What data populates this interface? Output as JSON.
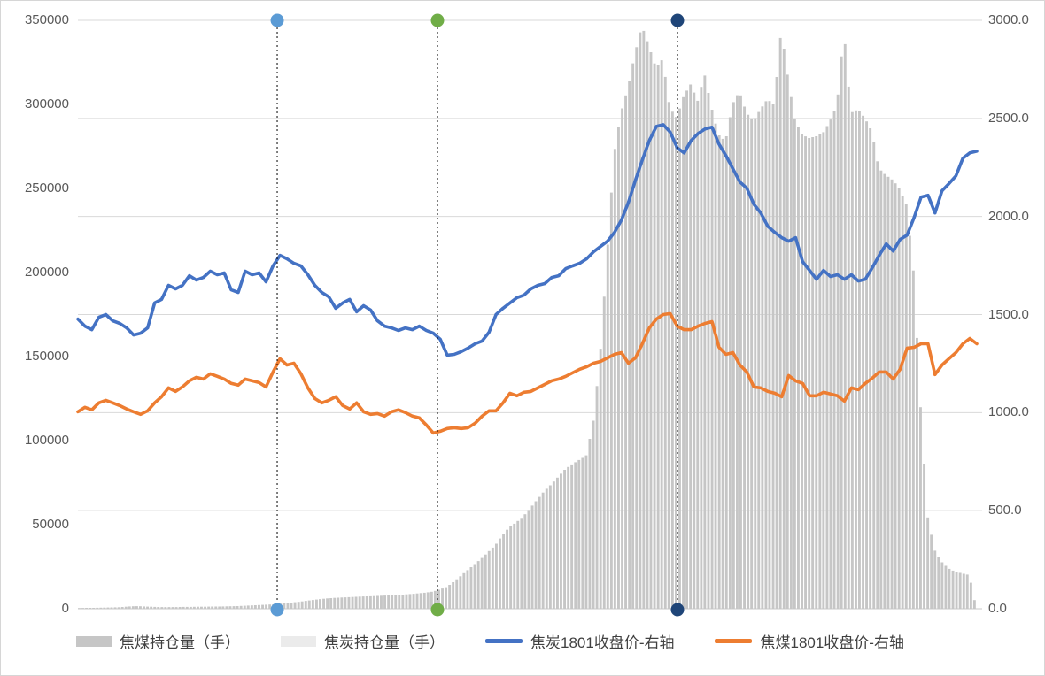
{
  "chart_data": {
    "type": "combo",
    "title": "",
    "grid": "horizontal",
    "background": "#ffffff",
    "gridline_color": "#d9d9d9",
    "axis_line_color": "#c9c9c9",
    "left_axis": {
      "min": 0,
      "max": 350000,
      "step": 50000,
      "tick_labels": [
        "350000",
        "300000",
        "250000",
        "200000",
        "150000",
        "100000",
        "50000",
        "0"
      ]
    },
    "right_axis": {
      "min": 0,
      "max": 3000,
      "step": 500,
      "tick_labels": [
        "3000.0",
        "2500.0",
        "2000.0",
        "1500.0",
        "1000.0",
        "500.0",
        "0.0"
      ]
    },
    "x_axis": {
      "labels_visible": false
    },
    "series": [
      {
        "name": "焦煤持仓量（手）",
        "type": "bar",
        "axis": "left",
        "color": "#c6c6c6",
        "visible": true,
        "values": [
          400,
          500,
          500,
          600,
          700,
          800,
          900,
          1200,
          1500,
          1500,
          1300,
          1100,
          1000,
          1000,
          1000,
          1100,
          1100,
          1200,
          1200,
          1300,
          1300,
          1400,
          1500,
          1600,
          1800,
          2000,
          2200,
          2400,
          2600,
          3000,
          3400,
          3800,
          4200,
          4800,
          5300,
          5800,
          6200,
          6500,
          6700,
          6900,
          7100,
          7300,
          7400,
          7600,
          7800,
          8000,
          8200,
          8500,
          8800,
          9200,
          9600,
          10200,
          11500,
          13000,
          16000,
          19500,
          23000,
          26500,
          30000,
          34000,
          38000,
          44000,
          48500,
          51500,
          55000,
          60000,
          65000,
          70000,
          74000,
          78500,
          83000,
          86000,
          88500,
          91000,
          110000,
          150000,
          210000,
          270000,
          295000,
          310000,
          330000,
          347000,
          335000,
          322000,
          327000,
          298000,
          292000,
          305000,
          312000,
          302000,
          318000,
          298000,
          282000,
          278000,
          300000,
          308000,
          295000,
          290000,
          297000,
          303000,
          300000,
          345000,
          315000,
          290000,
          282000,
          280000,
          281000,
          283000,
          290000,
          300000,
          344000,
          295000,
          297000,
          292000,
          284000,
          262000,
          258000,
          255000,
          250000,
          240000,
          200000,
          120000,
          55000,
          35000,
          28000,
          24000,
          22000,
          21000,
          20000,
          0
        ]
      },
      {
        "name": "焦炭持仓量（手）",
        "type": "bar",
        "axis": "left",
        "color": "#ebebeb",
        "visible": false,
        "values": []
      },
      {
        "name": "焦炭1801收盘价-右轴",
        "type": "line",
        "axis": "right",
        "color": "#4472c4",
        "visible": true,
        "values": [
          1477,
          1441,
          1423,
          1486,
          1500,
          1468,
          1455,
          1432,
          1396,
          1405,
          1432,
          1559,
          1577,
          1649,
          1631,
          1649,
          1698,
          1676,
          1689,
          1721,
          1703,
          1712,
          1626,
          1613,
          1721,
          1703,
          1712,
          1667,
          1748,
          1802,
          1784,
          1761,
          1748,
          1703,
          1649,
          1613,
          1590,
          1532,
          1559,
          1577,
          1514,
          1545,
          1523,
          1468,
          1441,
          1432,
          1419,
          1432,
          1423,
          1441,
          1419,
          1405,
          1374,
          1293,
          1297,
          1311,
          1329,
          1351,
          1365,
          1410,
          1500,
          1532,
          1559,
          1586,
          1599,
          1631,
          1649,
          1658,
          1689,
          1698,
          1734,
          1748,
          1761,
          1784,
          1820,
          1847,
          1874,
          1919,
          1982,
          2072,
          2185,
          2288,
          2387,
          2459,
          2468,
          2430,
          2350,
          2324,
          2387,
          2423,
          2446,
          2455,
          2369,
          2310,
          2243,
          2176,
          2144,
          2063,
          2018,
          1950,
          1919,
          1892,
          1874,
          1892,
          1770,
          1725,
          1680,
          1725,
          1694,
          1703,
          1680,
          1703,
          1671,
          1680,
          1739,
          1802,
          1860,
          1824,
          1883,
          1905,
          1995,
          2099,
          2108,
          2018,
          2131,
          2167,
          2207,
          2297,
          2324,
          2333
        ]
      },
      {
        "name": "焦煤1801收盘价-右轴",
        "type": "line",
        "axis": "right",
        "color": "#ed7d31",
        "visible": true,
        "values": [
          1004,
          1027,
          1014,
          1050,
          1063,
          1050,
          1036,
          1018,
          1004,
          991,
          1009,
          1050,
          1081,
          1126,
          1108,
          1131,
          1162,
          1180,
          1171,
          1198,
          1185,
          1171,
          1149,
          1140,
          1171,
          1162,
          1153,
          1131,
          1207,
          1275,
          1243,
          1252,
          1198,
          1126,
          1072,
          1050,
          1063,
          1081,
          1036,
          1018,
          1050,
          1004,
          991,
          995,
          982,
          1004,
          1014,
          1000,
          982,
          973,
          937,
          896,
          905,
          919,
          923,
          919,
          923,
          946,
          982,
          1009,
          1009,
          1050,
          1099,
          1086,
          1104,
          1108,
          1126,
          1144,
          1162,
          1171,
          1185,
          1203,
          1221,
          1234,
          1252,
          1261,
          1279,
          1297,
          1306,
          1252,
          1279,
          1351,
          1432,
          1477,
          1500,
          1505,
          1441,
          1423,
          1423,
          1441,
          1455,
          1464,
          1333,
          1297,
          1306,
          1243,
          1207,
          1131,
          1126,
          1108,
          1099,
          1081,
          1189,
          1162,
          1149,
          1086,
          1086,
          1104,
          1095,
          1086,
          1059,
          1126,
          1117,
          1149,
          1176,
          1207,
          1207,
          1171,
          1221,
          1329,
          1333,
          1351,
          1351,
          1194,
          1243,
          1275,
          1306,
          1351,
          1378,
          1351
        ]
      }
    ],
    "event_markers": [
      {
        "x_fraction": 0.2217,
        "color": "#5b9bd5"
      },
      {
        "x_fraction": 0.4,
        "color": "#70ad47"
      },
      {
        "x_fraction": 0.667,
        "color": "#1f4578"
      }
    ],
    "legend": {
      "position": "bottom"
    }
  }
}
